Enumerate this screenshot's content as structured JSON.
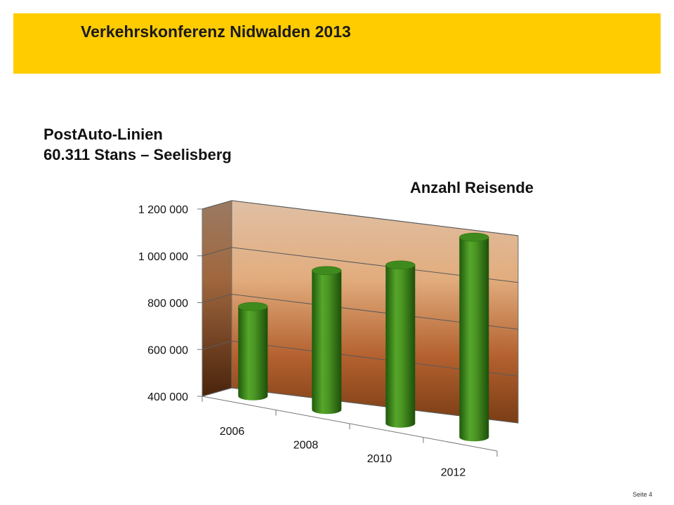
{
  "header": {
    "title": "Verkehrskonferenz Nidwalden 2013"
  },
  "subtitle": {
    "line1": "PostAuto-Linien",
    "line2": "60.311 Stans – Seelisberg"
  },
  "footer": {
    "page_label": "Seite 4"
  },
  "colors": {
    "header_band": "#ffcc00",
    "bar_green": "#3f8f1f",
    "wall_light": "#e8c3a3",
    "wall_dark": "#6a3210"
  },
  "chart_data": {
    "type": "bar",
    "title": "Anzahl Reisende",
    "categories": [
      "2006",
      "2008",
      "2010",
      "2012"
    ],
    "values": [
      780000,
      955000,
      1000000,
      1140000
    ],
    "ylim": [
      400000,
      1200000
    ],
    "yticks": [
      400000,
      600000,
      800000,
      1000000,
      1200000
    ],
    "ytick_labels": [
      "400 000",
      "600 000",
      "800 000",
      "1 000 000",
      "1 200 000"
    ],
    "xlabel": "",
    "ylabel": "",
    "grid": true,
    "style": "3d-cylinder"
  }
}
